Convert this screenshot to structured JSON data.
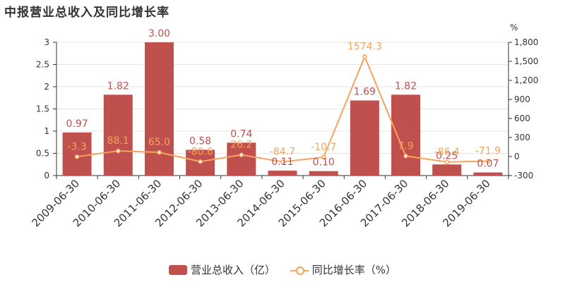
{
  "title": "中报营业总收入及同比增长率",
  "colors": {
    "bar": "#c0504d",
    "bar_label": "#c0504d",
    "line": "#f7a35c",
    "line_label": "#f7a35c",
    "axis": "#333333",
    "grid": "#e6e6e6"
  },
  "chart_data": {
    "type": "bar",
    "categories": [
      "2009-06-30",
      "2010-06-30",
      "2011-06-30",
      "2012-06-30",
      "2013-06-30",
      "2014-06-30",
      "2015-06-30",
      "2016-06-30",
      "2017-06-30",
      "2018-06-30",
      "2019-06-30"
    ],
    "series": [
      {
        "name": "营业总收入（亿）",
        "type": "bar",
        "axis": "left",
        "values": [
          0.97,
          1.82,
          3.0,
          0.58,
          0.74,
          0.11,
          0.1,
          1.69,
          1.82,
          0.25,
          0.07
        ],
        "labels": [
          "0.97",
          "1.82",
          "3.00",
          "0.58",
          "0.74",
          "0.11",
          "0.10",
          "1.69",
          "1.82",
          "0.25",
          "0.07"
        ]
      },
      {
        "name": "同比增长率（%）",
        "type": "line",
        "axis": "right",
        "values": [
          -3.3,
          88.1,
          65.0,
          -80.6,
          26.2,
          -84.7,
          -10.7,
          1574.3,
          7.9,
          -86.4,
          -71.9
        ],
        "labels": [
          "-3.3",
          "88.1",
          "65.0",
          "-80.6",
          "26.2",
          "-84.7",
          "-10.7",
          "1574.3",
          "7.9",
          "-86.4",
          "-71.9"
        ]
      }
    ],
    "y_left": {
      "ylim": [
        0,
        3
      ],
      "ticks": [
        "0",
        "0.5",
        "1",
        "1.5",
        "2",
        "2.5",
        "3"
      ],
      "tick_values": [
        0,
        0.5,
        1,
        1.5,
        2,
        2.5,
        3
      ]
    },
    "y_right": {
      "unit": "%",
      "ylim": [
        -300,
        1800
      ],
      "ticks": [
        "-300",
        "0",
        "300",
        "600",
        "900",
        "1,200",
        "1,500",
        "1,800"
      ],
      "tick_values": [
        -300,
        0,
        300,
        600,
        900,
        1200,
        1500,
        1800
      ]
    },
    "legend_position": "bottom-center"
  }
}
